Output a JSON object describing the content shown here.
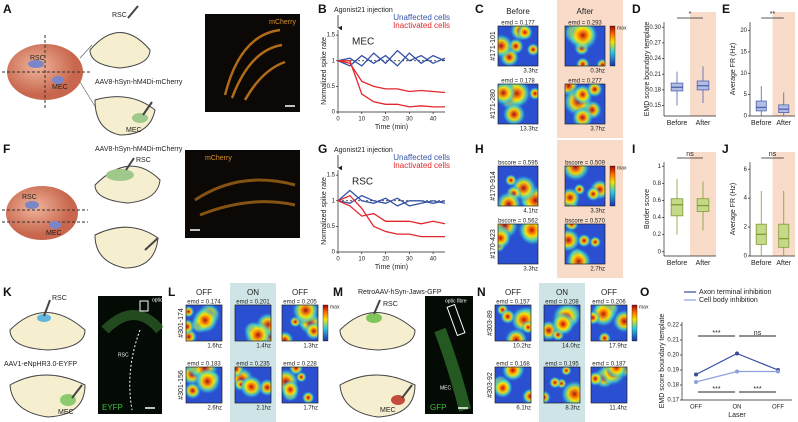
{
  "panels": {
    "A": {
      "label": "A",
      "rsc_brain": "RSC",
      "mec_brain": "MEC",
      "rsc_slice": "RSC",
      "virus": "AAV8-hSyn-hM4Di-mCherry",
      "mec_slice": "MEC",
      "image_label": "mCherry"
    },
    "B": {
      "label": "B",
      "chart": {
        "type": "line",
        "annotation": "Agonist21 injection",
        "region": "MEC",
        "y_label": "Normalized spike rate",
        "x_label": "Time (min)",
        "x": [
          0,
          5,
          10,
          15,
          20,
          25,
          30,
          35,
          40,
          45
        ],
        "xlim": [
          0,
          45
        ],
        "xticks": [
          0,
          10,
          20,
          30,
          40
        ],
        "ylim": [
          0,
          1.6
        ],
        "yticks": [
          0,
          0.5,
          1,
          1.5
        ],
        "reference_line": 1,
        "series": [
          {
            "name": "Unaffected cells",
            "color": "#3553a6",
            "lines": [
              [
                1,
                1.05,
                0.9,
                1.15,
                0.95,
                1.2,
                1.0,
                1.1,
                0.95,
                1.05
              ],
              [
                1,
                0.9,
                1.1,
                0.95,
                1.1,
                0.9,
                1.15,
                0.95,
                1.1,
                1.0
              ]
            ]
          },
          {
            "name": "Inactivated cells",
            "color": "#e3262b",
            "lines": [
              [
                1,
                1.0,
                0.35,
                0.2,
                0.15,
                0.15,
                0.1,
                0.12,
                0.1,
                0.1
              ],
              [
                1,
                0.95,
                0.6,
                0.5,
                0.45,
                0.45,
                0.4,
                0.42,
                0.4,
                0.38
              ]
            ]
          }
        ]
      }
    },
    "C": {
      "label": "C",
      "columns": [
        "Before",
        "After"
      ],
      "colorbar": "max",
      "rows": [
        {
          "id": "#171-101",
          "cells": [
            {
              "score": "emd = 0.177",
              "rate": "3.3hz"
            },
            {
              "score": "emd = 0.293",
              "rate": "0.3hz"
            }
          ]
        },
        {
          "id": "#171-280",
          "cells": [
            {
              "score": "emd = 0.178",
              "rate": "13.3hz"
            },
            {
              "score": "emd = 0.277",
              "rate": "3.7hz"
            }
          ]
        }
      ]
    },
    "D": {
      "label": "D",
      "chart": {
        "type": "box",
        "y_label": "EMD score boundary template",
        "categories": [
          "Before",
          "After"
        ],
        "color": "#4d62ad",
        "fill": "#b3bde3",
        "significance": "*",
        "ylim": [
          0.13,
          0.31
        ],
        "yticks": [
          0.15,
          0.18,
          0.21,
          0.24,
          0.27,
          {
            "value": 0.3,
            "label": "0.30"
          }
        ],
        "boxes": [
          {
            "min": 0.15,
            "q1": 0.178,
            "median": 0.185,
            "q3": 0.193,
            "max": 0.215
          },
          {
            "min": 0.155,
            "q1": 0.18,
            "median": 0.188,
            "q3": 0.197,
            "max": 0.225
          }
        ]
      }
    },
    "E": {
      "label": "E",
      "chart": {
        "type": "box",
        "y_label": "Average FR (Hz)",
        "categories": [
          "Before",
          "After"
        ],
        "color": "#4d62ad",
        "fill": "#b3bde3",
        "significance": "**",
        "ylim": [
          0,
          22
        ],
        "yticks": [
          0,
          5,
          10,
          15,
          20
        ],
        "boxes": [
          {
            "min": 0,
            "q1": 1.2,
            "median": 2,
            "q3": 3.5,
            "max": 7
          },
          {
            "min": 0,
            "q1": 0.8,
            "median": 1.6,
            "q3": 2.6,
            "max": 5.5
          }
        ]
      }
    },
    "F": {
      "label": "F",
      "virus": "AAV8-hSyn-hM4Di-mCherry",
      "rsc_slice": "RSC",
      "rsc_brain": "RSC",
      "mec_brain": "MEC",
      "image_label": "mCherry"
    },
    "G": {
      "label": "G",
      "chart": {
        "type": "line",
        "annotation": "Agonist21 injection",
        "region": "RSC",
        "y_label": "Normalized spike rate",
        "x_label": "Time (min)",
        "x": [
          0,
          5,
          10,
          15,
          20,
          25,
          30,
          35,
          40,
          45
        ],
        "xlim": [
          0,
          45
        ],
        "xticks": [
          0,
          10,
          20,
          30,
          40
        ],
        "ylim": [
          0,
          1.6
        ],
        "yticks": [
          0,
          0.5,
          1,
          1.5
        ],
        "reference_line": 1,
        "series": [
          {
            "name": "Unaffected cells",
            "color": "#3553a6",
            "lines": [
              [
                1,
                1.2,
                1.0,
                0.95,
                1.05,
                0.9,
                1.0,
                1.0,
                0.95,
                1.0
              ],
              [
                1,
                0.95,
                1.1,
                1.0,
                0.95,
                1.05,
                0.9,
                0.95,
                1.0,
                0.95
              ]
            ]
          },
          {
            "name": "Inactivated cells",
            "color": "#e3262b",
            "lines": [
              [
                1,
                1.1,
                0.85,
                0.5,
                0.4,
                0.35,
                0.35,
                0.3,
                0.3,
                0.3
              ],
              [
                1,
                0.9,
                0.7,
                0.75,
                0.6,
                0.6,
                0.6,
                0.55,
                0.6,
                0.55
              ]
            ]
          }
        ]
      }
    },
    "H": {
      "label": "H",
      "colorbar": "max",
      "rows": [
        {
          "id": "#170-914",
          "cells": [
            {
              "score": "bscore = 0.595",
              "rate": "4.1hz"
            },
            {
              "score": "bscore = 0.509",
              "rate": "3.3hz"
            }
          ]
        },
        {
          "id": "#170-423",
          "cells": [
            {
              "score": "bscore = 0.562",
              "rate": "3.3hz"
            },
            {
              "score": "bscore = 0.570",
              "rate": "2.7hz"
            }
          ]
        }
      ]
    },
    "I": {
      "label": "I",
      "chart": {
        "type": "box",
        "y_label": "Border score",
        "categories": [
          "Before",
          "After"
        ],
        "color": "#7f9c2e",
        "fill": "#c4d98a",
        "significance": "ns",
        "ylim": [
          -0.05,
          1.05
        ],
        "yticks": [
          0,
          0.2,
          0.4,
          0.6,
          0.8,
          1
        ],
        "boxes": [
          {
            "min": 0.2,
            "q1": 0.42,
            "median": 0.55,
            "q3": 0.62,
            "max": 0.85
          },
          {
            "min": 0.25,
            "q1": 0.47,
            "median": 0.54,
            "q3": 0.62,
            "max": 0.82
          }
        ]
      }
    },
    "J": {
      "label": "J",
      "chart": {
        "type": "box",
        "y_label": "Average FR (Hz)",
        "categories": [
          "Before",
          "After"
        ],
        "color": "#7f9c2e",
        "fill": "#c4d98a",
        "significance": "ns",
        "ylim": [
          0,
          6.5
        ],
        "yticks": [
          0,
          2,
          4,
          6
        ],
        "boxes": [
          {
            "min": 0,
            "q1": 0.8,
            "median": 1.5,
            "q3": 2.2,
            "max": 4.5
          },
          {
            "min": 0,
            "q1": 0.6,
            "median": 1.2,
            "q3": 2.2,
            "max": 4.5
          }
        ]
      }
    },
    "K": {
      "label": "K",
      "rsc_slice": "RSC",
      "virus": "AAV1-eNpHR3.0-EYFP",
      "mec_slice": "MEC",
      "fibre": "optic fibre",
      "image_region": "RSC",
      "image_label": "EYFP"
    },
    "L": {
      "label": "L",
      "columns": [
        "OFF",
        "ON",
        "OFF"
      ],
      "colorbar": "max",
      "rows": [
        {
          "id": "#301-174",
          "cells": [
            {
              "score": "emd = 0.174",
              "rate": "1.6hz"
            },
            {
              "score": "emd = 0.201",
              "rate": "1.4hz"
            },
            {
              "score": "emd = 0.205",
              "rate": "1.3hz"
            }
          ]
        },
        {
          "id": "#301-156",
          "cells": [
            {
              "score": "emd = 0.183",
              "rate": "2.6hz"
            },
            {
              "score": "emd = 0.235",
              "rate": "2.1hz"
            },
            {
              "score": "emd = 0.228",
              "rate": "1.7hz"
            }
          ]
        }
      ]
    },
    "M": {
      "label": "M",
      "virus": "RetroAAV-hSyn-Jaws-GFP",
      "rsc_slice": "RSC",
      "mec_slice": "MEC",
      "fibre": "optic fibre",
      "image_region": "MEC",
      "image_label": "GFP"
    },
    "N": {
      "label": "N",
      "columns": [
        "OFF",
        "ON",
        "OFF"
      ],
      "colorbar": "max",
      "rows": [
        {
          "id": "#303-89",
          "cells": [
            {
              "score": "emd = 0.157",
              "rate": "10.2hz"
            },
            {
              "score": "emd = 0.208",
              "rate": "14.0hz"
            },
            {
              "score": "emd = 0.206",
              "rate": "17.9hz"
            }
          ]
        },
        {
          "id": "#303-92",
          "cells": [
            {
              "score": "emd = 0.168",
              "rate": "6.1hz"
            },
            {
              "score": "emd = 0.195",
              "rate": "8.3hz"
            },
            {
              "score": "emd = 0.187",
              "rate": "11.4hz"
            }
          ]
        }
      ]
    },
    "O": {
      "label": "O",
      "chart": {
        "type": "line",
        "y_label": "EMD score boundary template",
        "x_label": "Laser",
        "categories": [
          "OFF",
          "ON",
          "OFF"
        ],
        "ylim": [
          0.17,
          0.222
        ],
        "yticks": [
          0.17,
          0.18,
          0.19,
          {
            "value": 0.2,
            "label": "0.20"
          },
          0.21,
          0.22
        ],
        "significance_top": [
          "***",
          "ns"
        ],
        "significance_bottom": [
          "***",
          "***"
        ],
        "series": [
          {
            "name": "Axon terminal inhibition",
            "color": "#3b4aa0",
            "values": [
              0.187,
              0.201,
              0.19
            ]
          },
          {
            "name": "Cell body inhibition",
            "color": "#8e9fdc",
            "values": [
              0.182,
              0.189,
              0.189
            ]
          }
        ]
      }
    }
  }
}
